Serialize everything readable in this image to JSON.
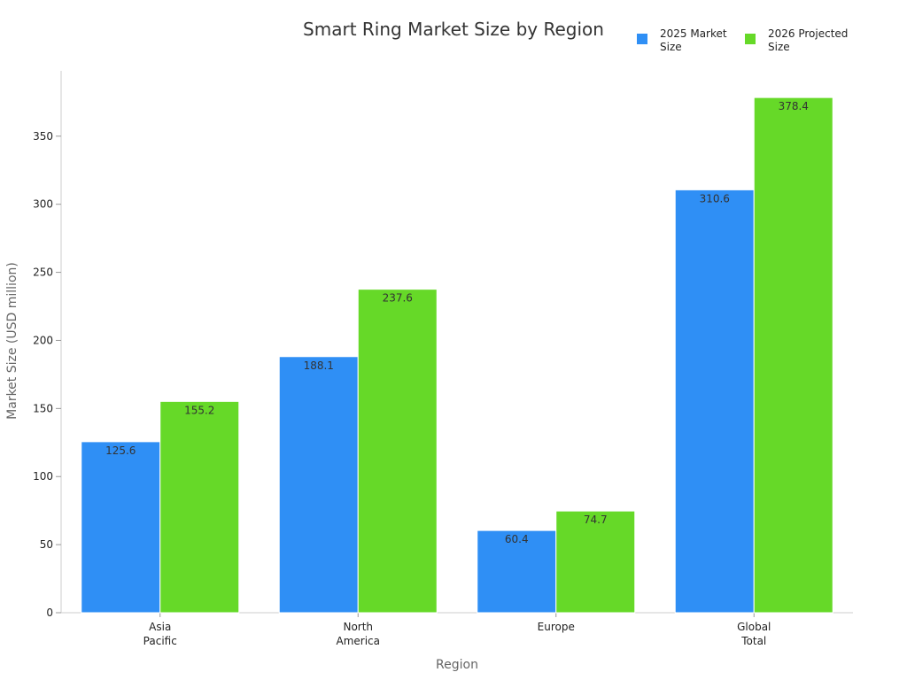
{
  "chart_data": {
    "type": "bar",
    "title": "Smart Ring Market Size by Region",
    "xlabel": "Region",
    "ylabel": "Market Size (USD million)",
    "categories": [
      [
        "Asia",
        "Pacific"
      ],
      [
        "North",
        "America"
      ],
      [
        "Europe"
      ],
      [
        "Global",
        "Total"
      ]
    ],
    "series": [
      {
        "name_lines": [
          "2025 Market",
          "Size"
        ],
        "color": "#2f8ff5",
        "values": [
          125.6,
          188.1,
          60.4,
          310.6
        ],
        "labels": [
          "125.6",
          "188.1",
          "60.4",
          "310.6"
        ]
      },
      {
        "name_lines": [
          "2026 Projected",
          "Size"
        ],
        "color": "#66d928",
        "values": [
          155.2,
          237.6,
          74.7,
          378.4
        ],
        "labels": [
          "155.2",
          "237.6",
          "74.7",
          "378.4"
        ]
      }
    ],
    "ylim": [
      0,
      398
    ],
    "yticks": [
      0,
      50,
      100,
      150,
      200,
      250,
      300,
      350
    ],
    "ytick_labels": [
      "0",
      "50",
      "100",
      "150",
      "200",
      "250",
      "300",
      "350"
    ],
    "grid": false,
    "legend_position": "top-right"
  }
}
